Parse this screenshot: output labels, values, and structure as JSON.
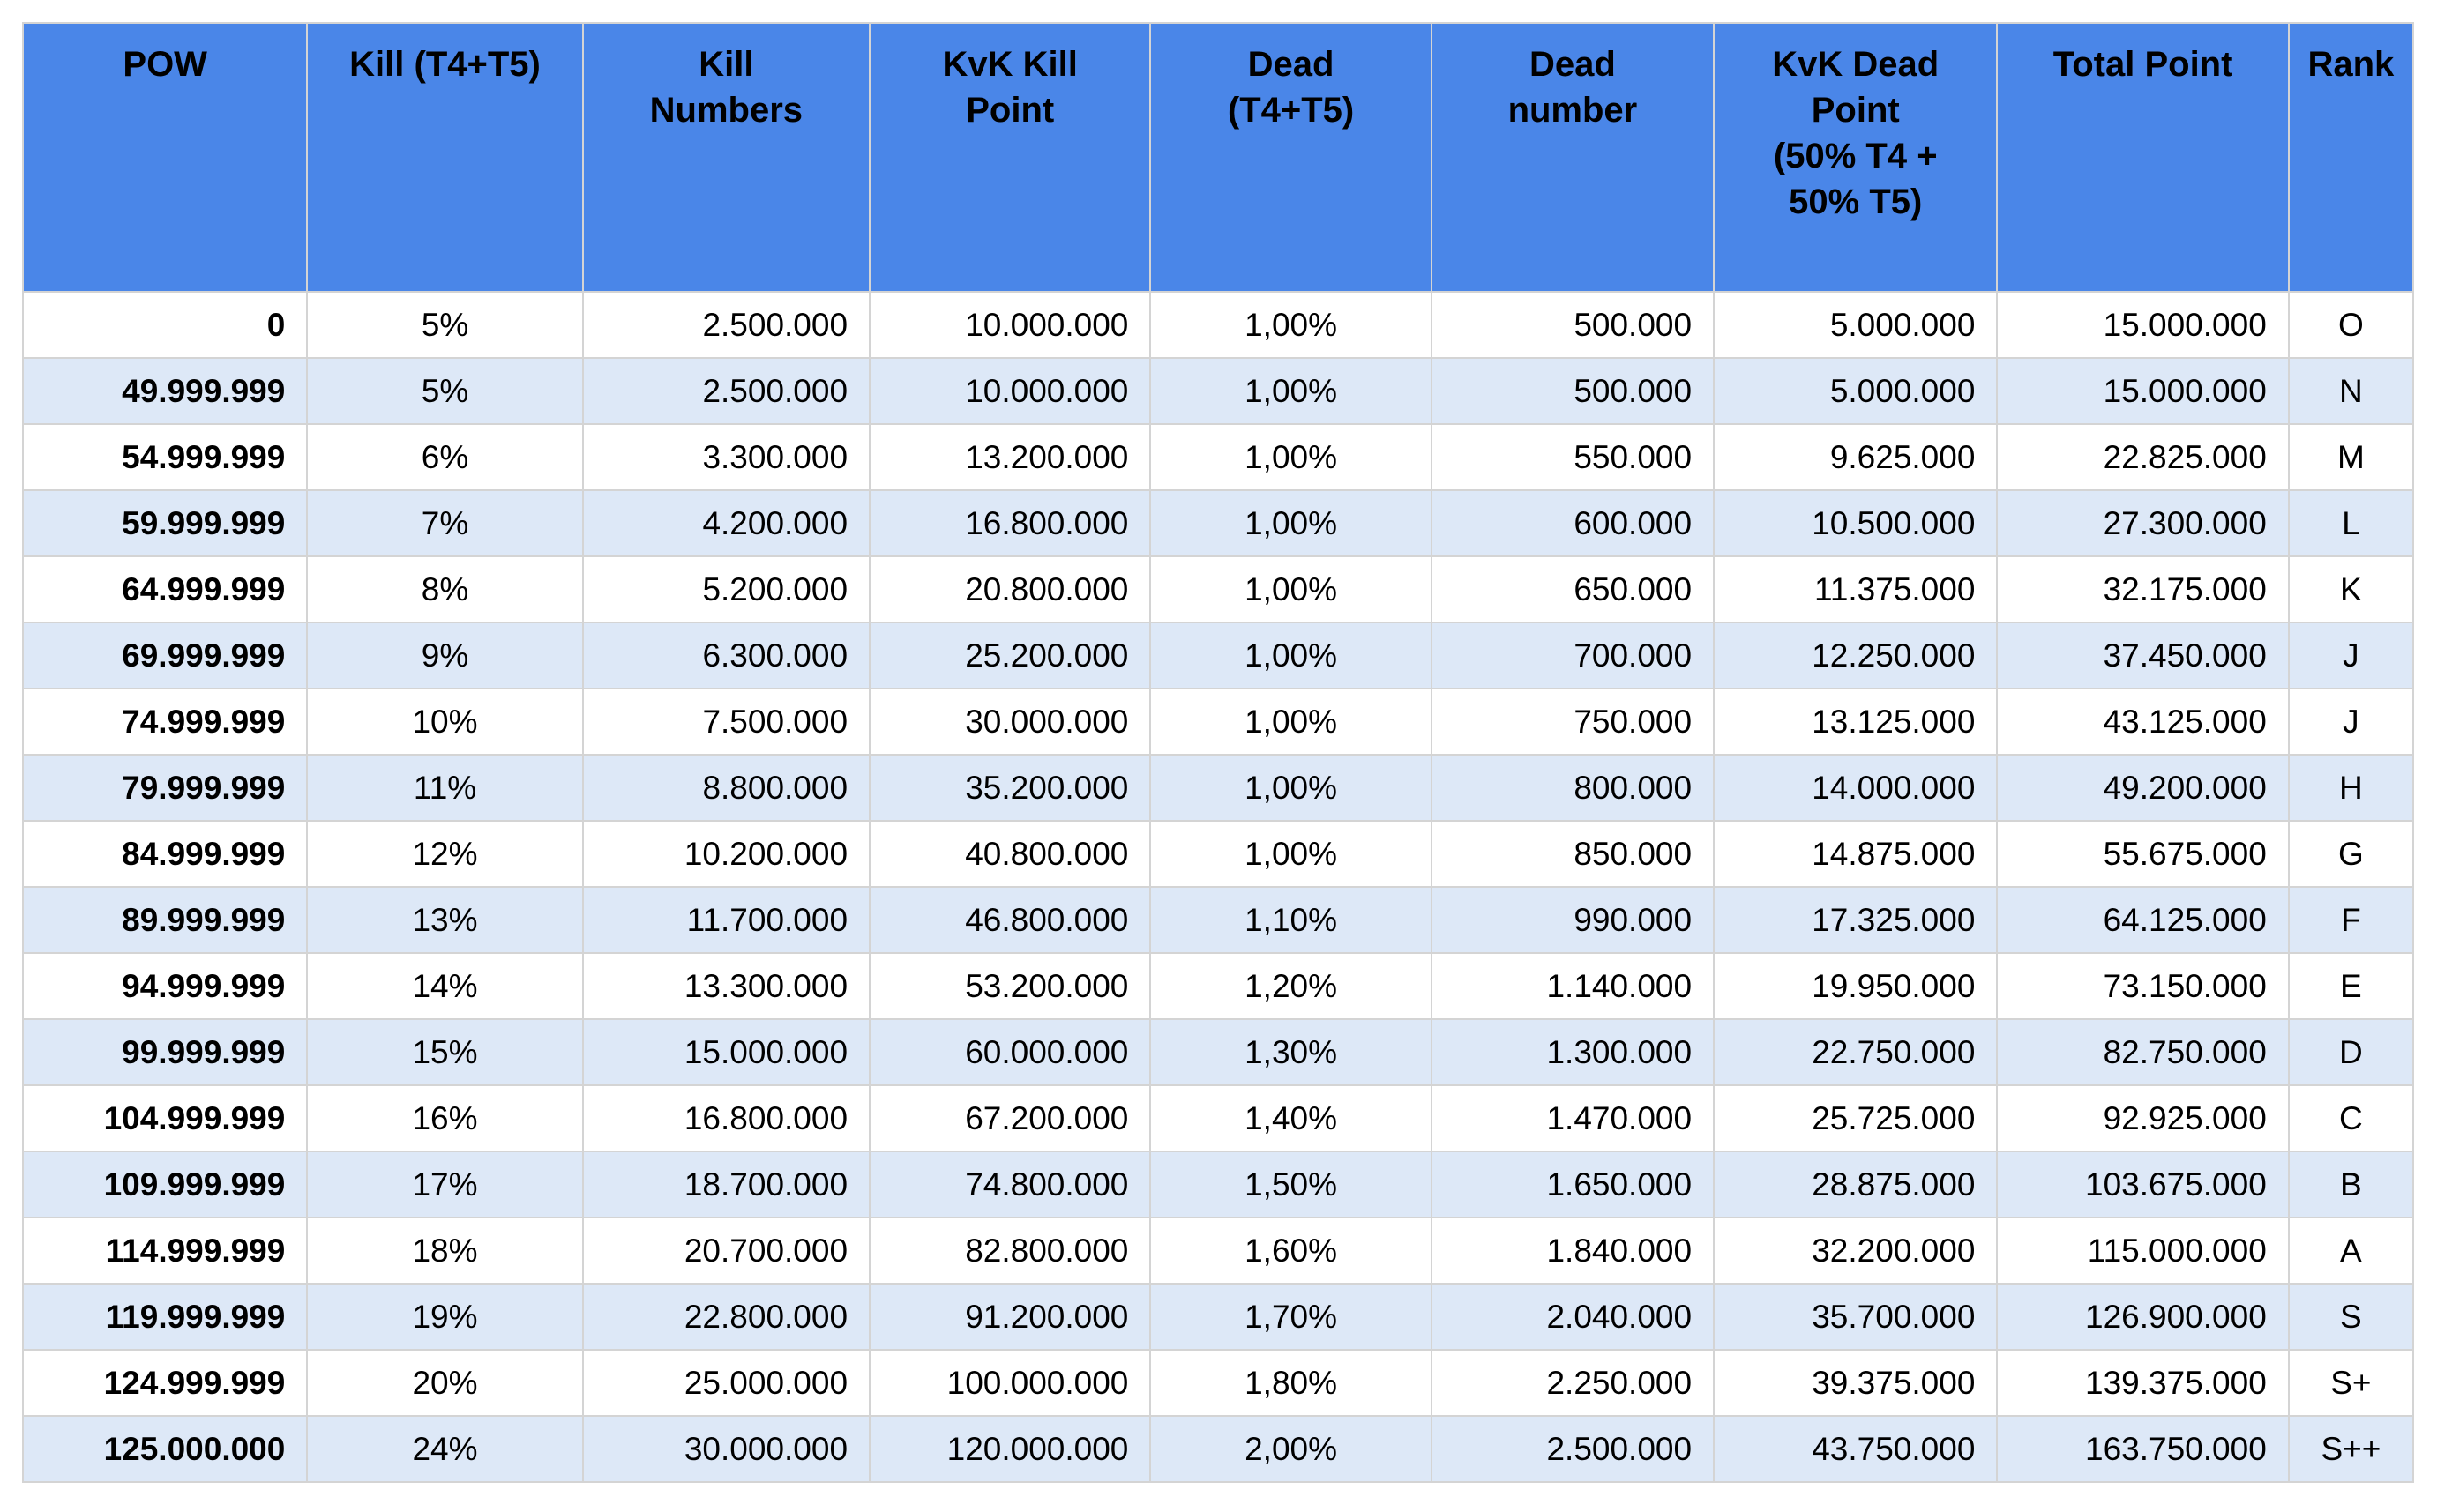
{
  "chart_data": {
    "type": "table",
    "columns": [
      "POW",
      "Kill (T4+T5)",
      "Kill\nNumbers",
      "KvK Kill\nPoint",
      "Dead\n(T4+T5)",
      "Dead\nnumber",
      "KvK Dead\nPoint\n(50% T4 +\n50% T5)",
      "Total Point",
      "Rank"
    ],
    "rows": [
      [
        "0",
        "5%",
        "2.500.000",
        "10.000.000",
        "1,00%",
        "500.000",
        "5.000.000",
        "15.000.000",
        "O"
      ],
      [
        "49.999.999",
        "5%",
        "2.500.000",
        "10.000.000",
        "1,00%",
        "500.000",
        "5.000.000",
        "15.000.000",
        "N"
      ],
      [
        "54.999.999",
        "6%",
        "3.300.000",
        "13.200.000",
        "1,00%",
        "550.000",
        "9.625.000",
        "22.825.000",
        "M"
      ],
      [
        "59.999.999",
        "7%",
        "4.200.000",
        "16.800.000",
        "1,00%",
        "600.000",
        "10.500.000",
        "27.300.000",
        "L"
      ],
      [
        "64.999.999",
        "8%",
        "5.200.000",
        "20.800.000",
        "1,00%",
        "650.000",
        "11.375.000",
        "32.175.000",
        "K"
      ],
      [
        "69.999.999",
        "9%",
        "6.300.000",
        "25.200.000",
        "1,00%",
        "700.000",
        "12.250.000",
        "37.450.000",
        "J"
      ],
      [
        "74.999.999",
        "10%",
        "7.500.000",
        "30.000.000",
        "1,00%",
        "750.000",
        "13.125.000",
        "43.125.000",
        "J"
      ],
      [
        "79.999.999",
        "11%",
        "8.800.000",
        "35.200.000",
        "1,00%",
        "800.000",
        "14.000.000",
        "49.200.000",
        "H"
      ],
      [
        "84.999.999",
        "12%",
        "10.200.000",
        "40.800.000",
        "1,00%",
        "850.000",
        "14.875.000",
        "55.675.000",
        "G"
      ],
      [
        "89.999.999",
        "13%",
        "11.700.000",
        "46.800.000",
        "1,10%",
        "990.000",
        "17.325.000",
        "64.125.000",
        "F"
      ],
      [
        "94.999.999",
        "14%",
        "13.300.000",
        "53.200.000",
        "1,20%",
        "1.140.000",
        "19.950.000",
        "73.150.000",
        "E"
      ],
      [
        "99.999.999",
        "15%",
        "15.000.000",
        "60.000.000",
        "1,30%",
        "1.300.000",
        "22.750.000",
        "82.750.000",
        "D"
      ],
      [
        "104.999.999",
        "16%",
        "16.800.000",
        "67.200.000",
        "1,40%",
        "1.470.000",
        "25.725.000",
        "92.925.000",
        "C"
      ],
      [
        "109.999.999",
        "17%",
        "18.700.000",
        "74.800.000",
        "1,50%",
        "1.650.000",
        "28.875.000",
        "103.675.000",
        "B"
      ],
      [
        "114.999.999",
        "18%",
        "20.700.000",
        "82.800.000",
        "1,60%",
        "1.840.000",
        "32.200.000",
        "115.000.000",
        "A"
      ],
      [
        "119.999.999",
        "19%",
        "22.800.000",
        "91.200.000",
        "1,70%",
        "2.040.000",
        "35.700.000",
        "126.900.000",
        "S"
      ],
      [
        "124.999.999",
        "20%",
        "25.000.000",
        "100.000.000",
        "1,80%",
        "2.250.000",
        "39.375.000",
        "139.375.000",
        "S+"
      ],
      [
        "125.000.000",
        "24%",
        "30.000.000",
        "120.000.000",
        "2,00%",
        "2.500.000",
        "43.750.000",
        "163.750.000",
        "S++"
      ]
    ]
  },
  "colors": {
    "header_bg": "#4a86e8",
    "row_band": "#dde8f7",
    "border": "#d4d4d4",
    "text": "#000000"
  }
}
